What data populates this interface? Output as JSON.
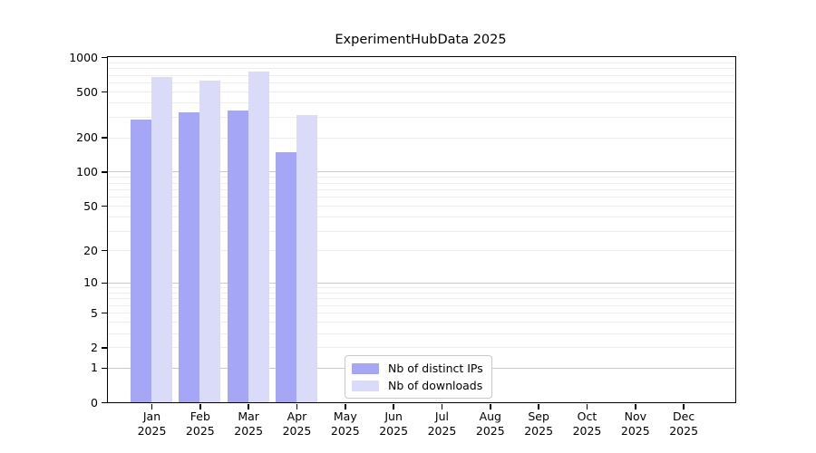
{
  "title": "ExperimentHubData 2025",
  "chart_data": {
    "type": "bar",
    "title": "ExperimentHubData 2025",
    "categories": [
      "Jan\n2025",
      "Feb\n2025",
      "Mar\n2025",
      "Apr\n2025",
      "May\n2025",
      "Jun\n2025",
      "Jul\n2025",
      "Aug\n2025",
      "Sep\n2025",
      "Oct\n2025",
      "Nov\n2025",
      "Dec\n2025"
    ],
    "series": [
      {
        "name": "Nb of distinct IPs",
        "color": "#a6a6f6",
        "values": [
          285,
          332,
          342,
          149,
          null,
          null,
          null,
          null,
          null,
          null,
          null,
          null
        ]
      },
      {
        "name": "Nb of downloads",
        "color": "#dadaf9",
        "values": [
          673,
          624,
          753,
          313,
          null,
          null,
          null,
          null,
          null,
          null,
          null,
          null
        ]
      }
    ],
    "xlabel": "",
    "ylabel": "",
    "yscale": "log1p",
    "ylim": [
      0,
      1000
    ],
    "ytick_values": [
      0,
      1,
      2,
      5,
      10,
      20,
      50,
      100,
      200,
      500,
      1000
    ],
    "ytick_labels": [
      "0",
      "1",
      "2",
      "5",
      "10",
      "20",
      "50",
      "100",
      "200",
      "500",
      "1000"
    ],
    "grid": "horizontal, log minor gridlines, darker lines at 1/10/100",
    "legend_position": "inside lower-center",
    "legend_entries": [
      "Nb of distinct IPs",
      "Nb of downloads"
    ]
  },
  "colors": {
    "ips_bar": "#a6a6f6",
    "downloads_bar": "#dadaf9",
    "minor_grid": "#ededed",
    "major_grid": "#c9c9c9",
    "axis": "#000000"
  }
}
